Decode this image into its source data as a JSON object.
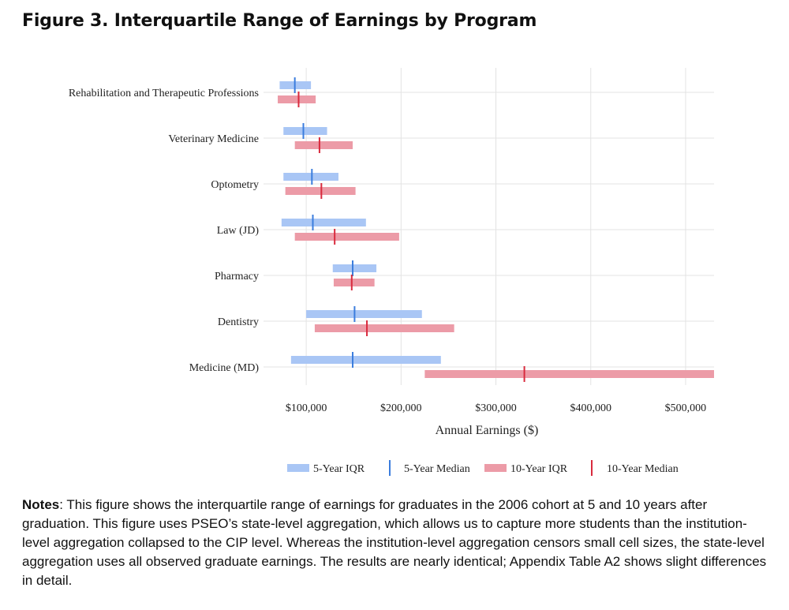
{
  "figure": {
    "title": "Figure 3.  Interquartile Range of Earnings by Program",
    "notes_label": "Notes",
    "notes_text": ": This figure shows the interquartile range of earnings for graduates in the 2006 cohort at 5 and 10 years after graduation. This figure uses PSEO’s state-level aggregation, which allows us to capture more students than the institution-level aggregation collapsed to the CIP level. Whereas the institution-level aggregation censors small cell sizes, the state-level aggregation uses all observed graduate earnings. The results are nearly identical; Appendix Table A2 shows slight differences in detail."
  },
  "chart_data": {
    "type": "range-bar",
    "title": "",
    "xlabel": "Annual Earnings ($)",
    "ylabel": "",
    "xlim": [
      55000,
      530000
    ],
    "xticks": [
      100000,
      200000,
      300000,
      400000,
      500000
    ],
    "xtick_labels": [
      "$100,000",
      "$200,000",
      "$300,000",
      "$400,000",
      "$500,000"
    ],
    "grid": true,
    "legend_position": "bottom",
    "categories": [
      "Rehabilitation and Therapeutic Professions",
      "Veterinary Medicine",
      "Optometry",
      "Law (JD)",
      "Pharmacy",
      "Dentistry",
      "Medicine (MD)"
    ],
    "series": [
      {
        "name": "5-Year IQR",
        "median_name": "5-Year Median",
        "color": "#a9c6f5",
        "median_color": "#3b7ddd",
        "low": [
          72000,
          76000,
          76000,
          74000,
          128000,
          100000,
          84000
        ],
        "median": [
          88000,
          97000,
          106000,
          107000,
          149000,
          151000,
          149000
        ],
        "high": [
          105000,
          122000,
          134000,
          163000,
          174000,
          222000,
          242000
        ]
      },
      {
        "name": "10-Year IQR",
        "median_name": "10-Year Median",
        "color": "#ec9ba7",
        "median_color": "#d92b3e",
        "low": [
          70000,
          88000,
          78000,
          88000,
          129000,
          109000,
          225000
        ],
        "median": [
          92000,
          114000,
          116000,
          130000,
          148000,
          164000,
          330000
        ],
        "high": [
          110000,
          149000,
          152000,
          198000,
          172000,
          256000,
          530000
        ]
      }
    ]
  }
}
